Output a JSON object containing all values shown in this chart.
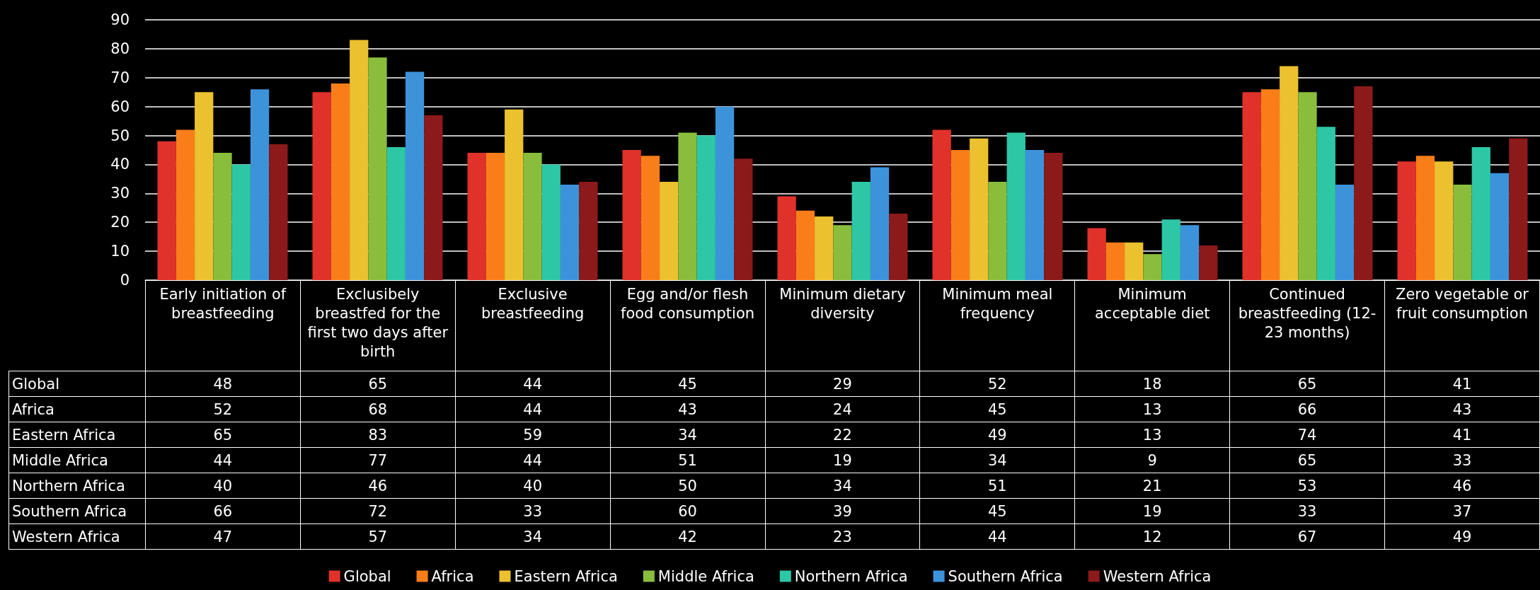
{
  "chart_data": {
    "type": "bar",
    "categories": [
      "Early initiation of breastfeeding",
      "Exclusibely breastfed for the first two days after birth",
      "Exclusive breastfeeding",
      "Egg and/or flesh food consumption",
      "Minimum dietary diversity",
      "Minimum meal frequency",
      "Minimum acceptable diet",
      "Continued breastfeeding (12-23 months)",
      "Zero vegetable or fruit consumption"
    ],
    "series": [
      {
        "name": "Global",
        "color": "#e0322a",
        "values": [
          48,
          65,
          44,
          45,
          29,
          52,
          18,
          65,
          41
        ]
      },
      {
        "name": "Africa",
        "color": "#f97e1a",
        "values": [
          52,
          68,
          44,
          43,
          24,
          45,
          13,
          66,
          43
        ]
      },
      {
        "name": "Eastern Africa",
        "color": "#ecc12f",
        "values": [
          65,
          83,
          59,
          34,
          22,
          49,
          13,
          74,
          41
        ]
      },
      {
        "name": "Middle Africa",
        "color": "#8abd3c",
        "values": [
          44,
          77,
          44,
          51,
          19,
          34,
          9,
          65,
          33
        ]
      },
      {
        "name": "Northern Africa",
        "color": "#2ec7a6",
        "values": [
          40,
          46,
          40,
          50,
          34,
          51,
          21,
          53,
          46
        ]
      },
      {
        "name": "Southern Africa",
        "color": "#3d93da",
        "values": [
          66,
          72,
          33,
          60,
          39,
          45,
          19,
          33,
          37
        ]
      },
      {
        "name": "Western Africa",
        "color": "#8c1a1a",
        "values": [
          47,
          57,
          34,
          42,
          23,
          44,
          12,
          67,
          49
        ]
      }
    ],
    "ylim": [
      0,
      90
    ],
    "yticks": [
      0,
      10,
      20,
      30,
      40,
      50,
      60,
      70,
      80,
      90
    ],
    "grid": "y",
    "legend": "bottom",
    "data_labels": true
  }
}
